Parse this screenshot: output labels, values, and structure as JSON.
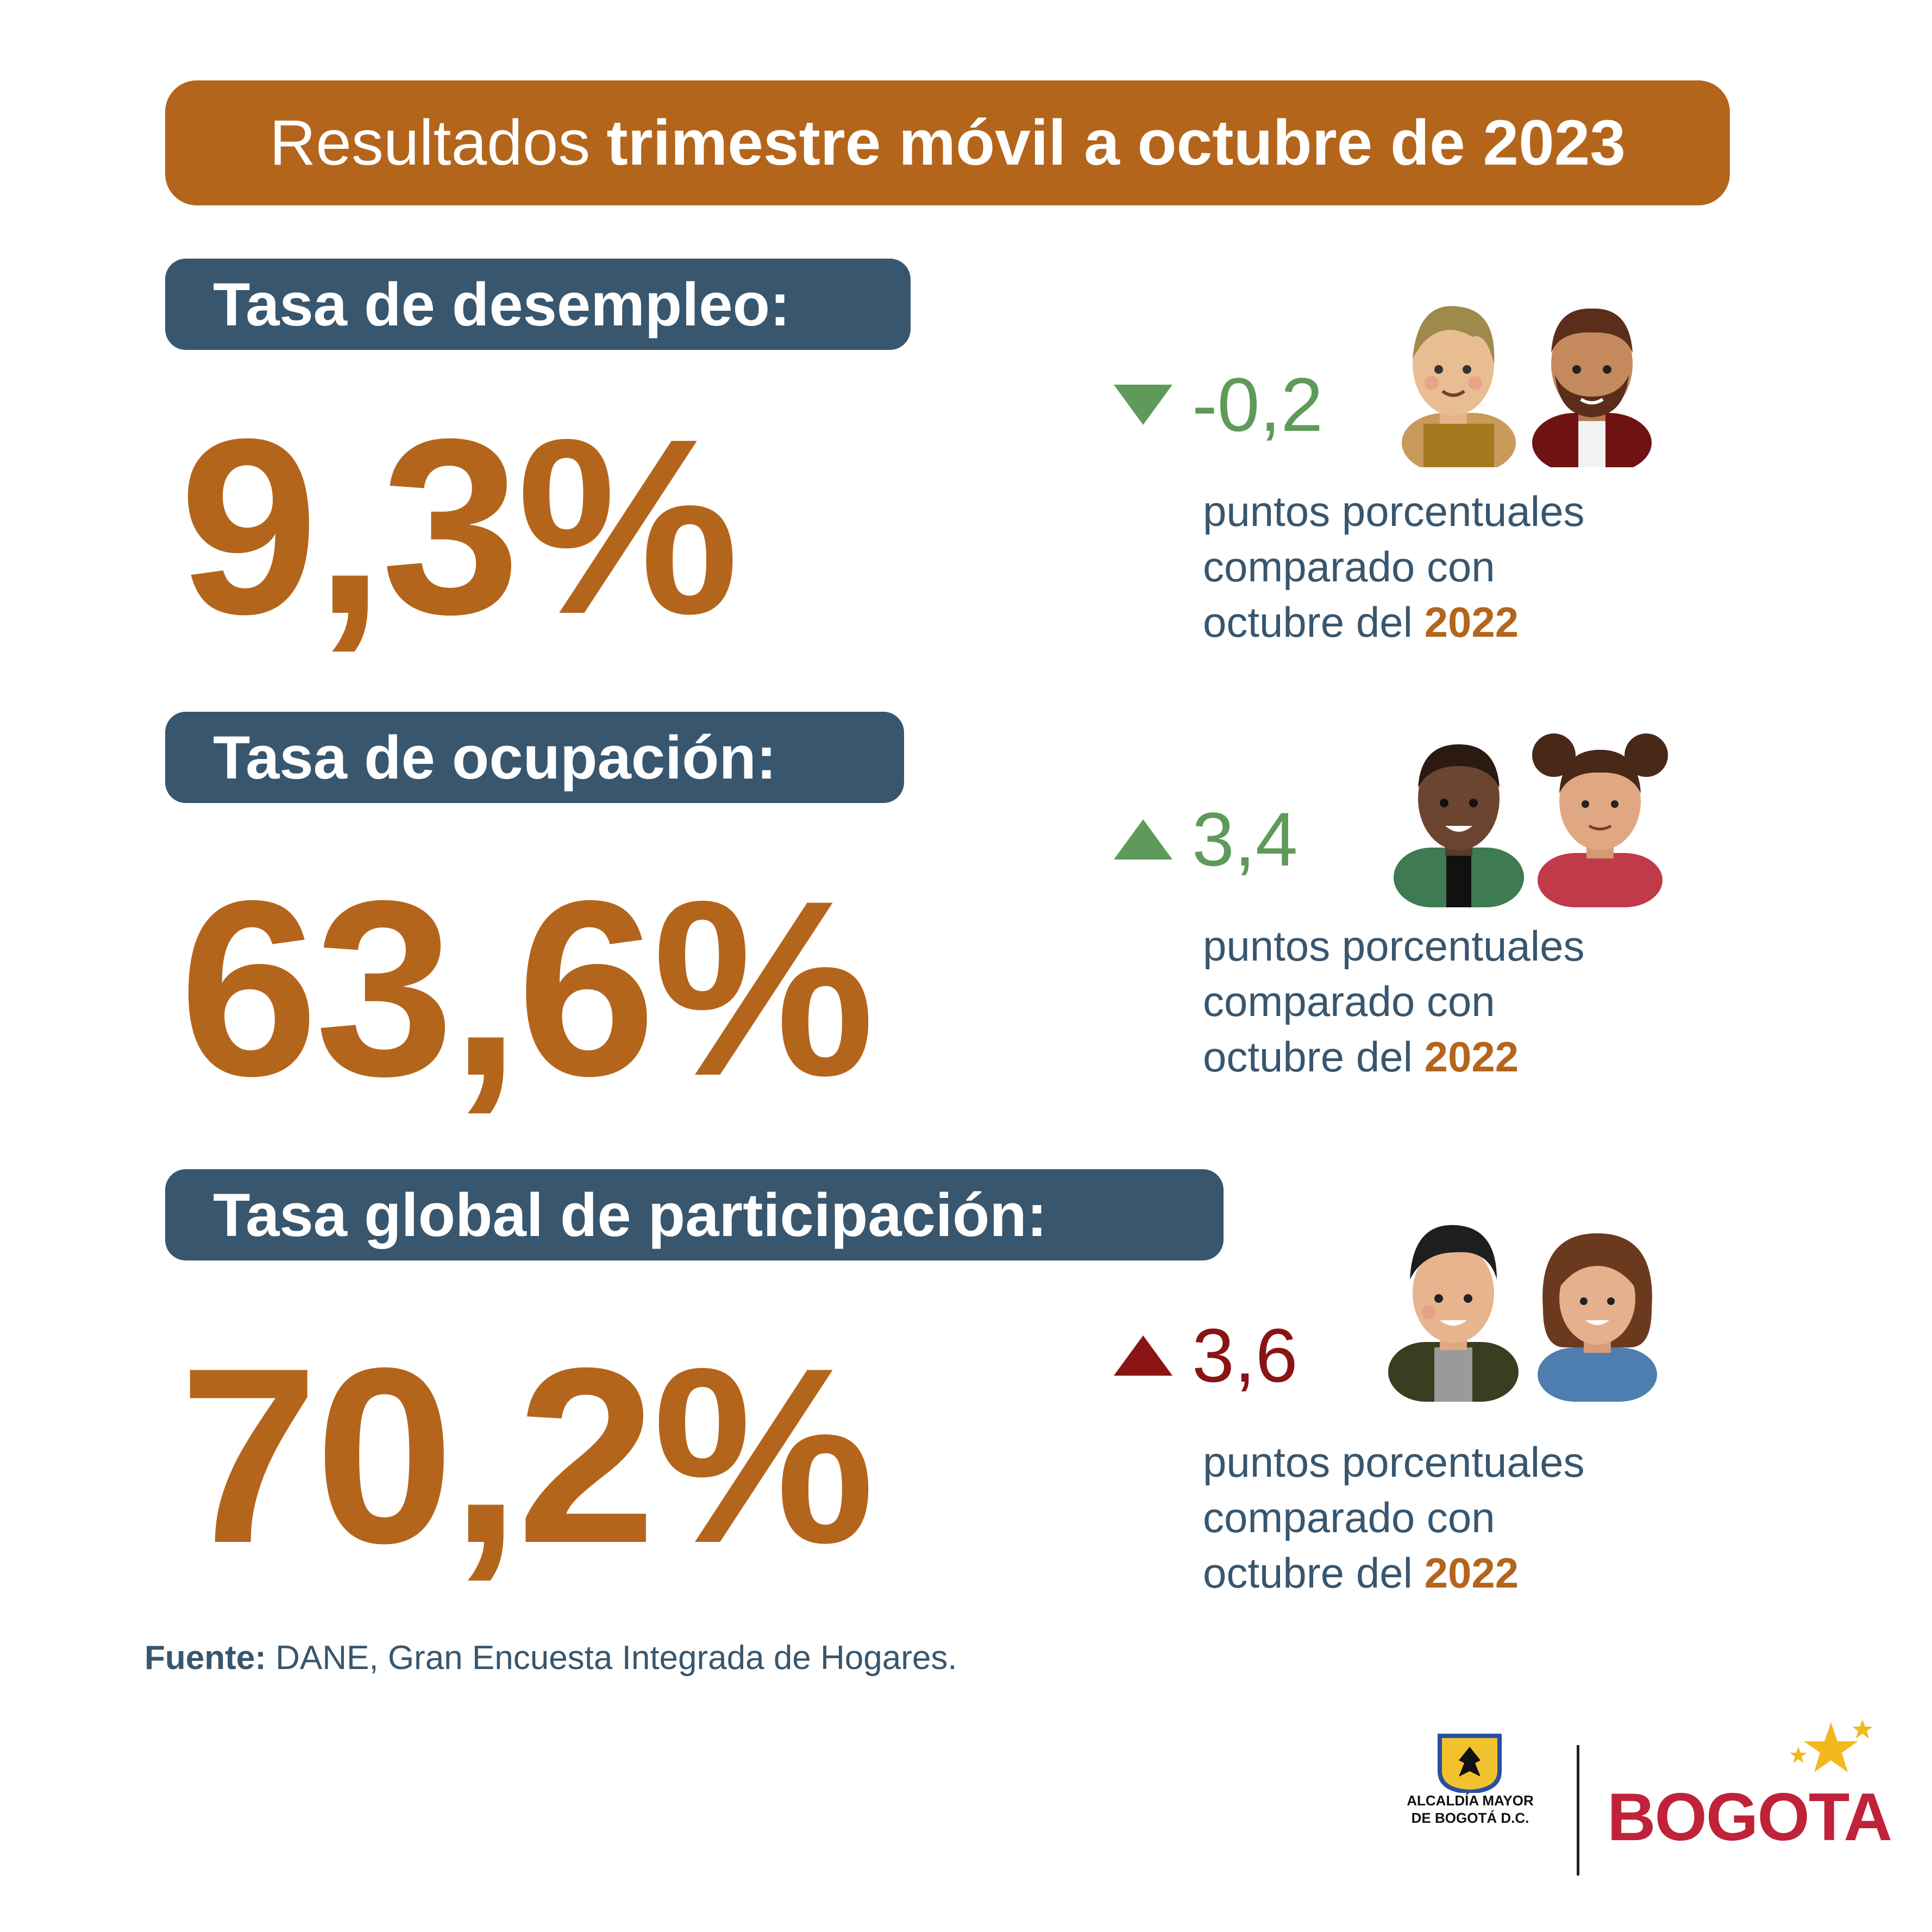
{
  "title": {
    "light": "Resultados",
    "bold": "trimestre móvil a octubre de 2023"
  },
  "indicators": [
    {
      "label": "Tasa de desempleo:",
      "value": "9,3%",
      "change": "-0,2",
      "direction": "down",
      "arrow_color": "#5F9A5A",
      "change_color": "#5F9A5A",
      "note_line1": "puntos porcentuales",
      "note_line2": "comparado con",
      "note_line3": "octubre del",
      "note_year": "2022"
    },
    {
      "label": "Tasa de ocupación:",
      "value": "63,6%",
      "change": "3,4",
      "direction": "up",
      "arrow_color": "#5F9A5A",
      "change_color": "#5F9A5A",
      "note_line1": "puntos porcentuales",
      "note_line2": "comparado con",
      "note_line3": "octubre del",
      "note_year": "2022"
    },
    {
      "label": "Tasa global de participación:",
      "value": "70,2%",
      "change": "3,6",
      "direction": "up",
      "arrow_color": "#8A1414",
      "change_color": "#8A1414",
      "note_line1": "puntos porcentuales",
      "note_line2": "comparado con",
      "note_line3": "octubre del",
      "note_year": "2022"
    }
  ],
  "source": {
    "label": "Fuente:",
    "text": "DANE, Gran Encuesta Integrada de Hogares."
  },
  "footer": {
    "seal_line1": "ALCALDÍA MAYOR",
    "seal_line2": "DE BOGOTÁ D.C.",
    "brand": "BOGOTA"
  },
  "colors": {
    "accent": "#B4651C",
    "navy": "#38566E",
    "green": "#5F9A5A",
    "red": "#8A1414",
    "brand": "#C0223A"
  }
}
